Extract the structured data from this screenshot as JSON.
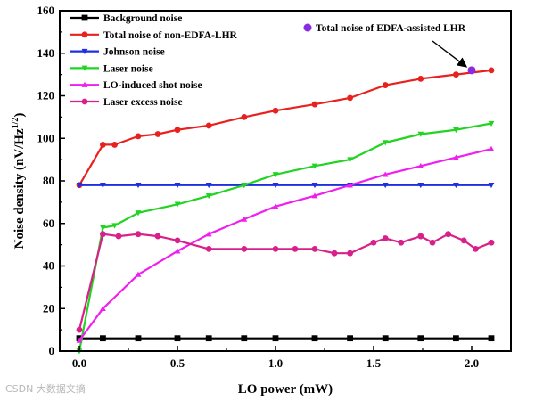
{
  "chart_data": {
    "type": "line",
    "xlabel": "LO power (mW)",
    "ylabel": "Noise density (nV/Hz",
    "ylabel_sup": "1/2",
    "ylabel_close": ")",
    "xlim": [
      -0.1,
      2.2
    ],
    "ylim": [
      0,
      160
    ],
    "x_ticks": [
      0.0,
      0.5,
      1.0,
      1.5,
      2.0
    ],
    "x_tick_labels": [
      "0.0",
      "0.5",
      "1.0",
      "1.5",
      "2.0"
    ],
    "y_ticks": [
      0,
      20,
      40,
      60,
      80,
      100,
      120,
      140,
      160
    ],
    "y_tick_labels": [
      "0",
      "20",
      "40",
      "60",
      "80",
      "100",
      "120",
      "140",
      "160"
    ],
    "legend_position": "top-left",
    "series": [
      {
        "name": "Background noise",
        "color": "#000000",
        "marker": "square",
        "x": [
          0.0,
          0.12,
          0.3,
          0.5,
          0.66,
          0.84,
          1.0,
          1.2,
          1.38,
          1.56,
          1.74,
          1.92,
          2.1
        ],
        "y": [
          6,
          6,
          6,
          6,
          6,
          6,
          6,
          6,
          6,
          6,
          6,
          6,
          6
        ]
      },
      {
        "name": "Total noise of non-EDFA-LHR",
        "color": "#e8201e",
        "marker": "circle",
        "x": [
          0.0,
          0.12,
          0.18,
          0.3,
          0.4,
          0.5,
          0.66,
          0.84,
          1.0,
          1.2,
          1.38,
          1.56,
          1.74,
          1.92,
          2.1
        ],
        "y": [
          78,
          97,
          97,
          101,
          102,
          104,
          106,
          110,
          113,
          116,
          119,
          125,
          128,
          130,
          132
        ]
      },
      {
        "name": "Johnson noise",
        "color": "#1f2fe0",
        "marker": "triangle-down",
        "x": [
          0.0,
          0.12,
          0.3,
          0.5,
          0.66,
          0.84,
          1.0,
          1.2,
          1.38,
          1.56,
          1.74,
          1.92,
          2.1
        ],
        "y": [
          78,
          78,
          78,
          78,
          78,
          78,
          78,
          78,
          78,
          78,
          78,
          78,
          78
        ]
      },
      {
        "name": "Laser noise",
        "color": "#22d422",
        "marker": "triangle-down",
        "x": [
          0.0,
          0.12,
          0.18,
          0.3,
          0.5,
          0.66,
          0.84,
          1.0,
          1.2,
          1.38,
          1.56,
          1.74,
          1.92,
          2.1
        ],
        "y": [
          0,
          58,
          59,
          65,
          69,
          73,
          78,
          83,
          87,
          90,
          98,
          102,
          104,
          107
        ]
      },
      {
        "name": "LO-induced shot noise",
        "color": "#f01ef0",
        "marker": "triangle-up",
        "x": [
          0.0,
          0.12,
          0.3,
          0.5,
          0.66,
          0.84,
          1.0,
          1.2,
          1.38,
          1.56,
          1.74,
          1.92,
          2.1
        ],
        "y": [
          5,
          20,
          36,
          47,
          55,
          62,
          68,
          73,
          78,
          83,
          87,
          91,
          95
        ]
      },
      {
        "name": "Laser excess noise",
        "color": "#d8208a",
        "marker": "circle",
        "x": [
          0.0,
          0.12,
          0.2,
          0.3,
          0.4,
          0.5,
          0.66,
          0.84,
          1.0,
          1.1,
          1.2,
          1.3,
          1.38,
          1.5,
          1.56,
          1.64,
          1.74,
          1.8,
          1.88,
          1.96,
          2.02,
          2.1
        ],
        "y": [
          10,
          55,
          54,
          55,
          54,
          52,
          48,
          48,
          48,
          48,
          48,
          46,
          46,
          51,
          53,
          51,
          54,
          51,
          55,
          52,
          48,
          51
        ]
      }
    ],
    "annotations": [
      {
        "text": "Total noise of EDFA-assisted LHR",
        "x": 2.0,
        "y": 132,
        "color": "#8a2be2"
      }
    ]
  },
  "watermark": "CSDN 大数据文摘"
}
